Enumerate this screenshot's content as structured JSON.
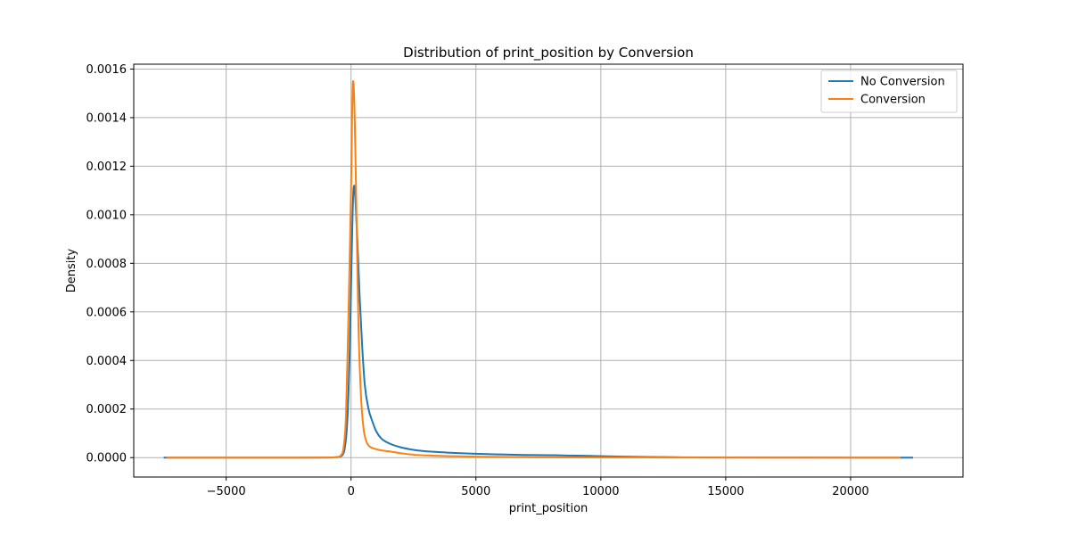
{
  "chart_data": {
    "type": "line",
    "title": "Distribution of print_position by Conversion",
    "xlabel": "print_position",
    "ylabel": "Density",
    "xlim": [
      -8700,
      24500
    ],
    "ylim": [
      -8e-05,
      0.00162
    ],
    "xticks": [
      -5000,
      0,
      5000,
      10000,
      15000,
      20000
    ],
    "xtick_labels": [
      "−5000",
      "0",
      "5000",
      "10000",
      "15000",
      "20000"
    ],
    "yticks": [
      0,
      0.0002,
      0.0004,
      0.0006,
      0.0008,
      0.001,
      0.0012,
      0.0014,
      0.0016
    ],
    "ytick_labels": [
      "0.0000",
      "0.0002",
      "0.0004",
      "0.0006",
      "0.0008",
      "0.0010",
      "0.0012",
      "0.0014",
      "0.0016"
    ],
    "grid": true,
    "legend_position": "top-right",
    "series": [
      {
        "name": "No Conversion",
        "color": "#1f77b4",
        "x": [
          -7500,
          -2000,
          -800,
          -500,
          -350,
          -250,
          -150,
          -50,
          0,
          50,
          100,
          130,
          180,
          250,
          350,
          450,
          550,
          700,
          850,
          1000,
          1200,
          1500,
          2000,
          2500,
          3000,
          3500,
          4000,
          5000,
          6000,
          7000,
          8000,
          9000,
          10000,
          11000,
          12000,
          13000,
          14000,
          15000,
          17000,
          20000,
          22500
        ],
        "y": [
          0,
          0,
          5e-07,
          3e-06,
          1e-05,
          4e-05,
          0.00015,
          0.00045,
          0.0007,
          0.00095,
          0.00111,
          0.00112,
          0.00105,
          0.0009,
          0.00065,
          0.00045,
          0.0003,
          0.0002,
          0.00015,
          0.00011,
          8e-05,
          6e-05,
          4.2e-05,
          3.2e-05,
          2.6e-05,
          2.3e-05,
          2e-05,
          1.6e-05,
          1.3e-05,
          1.1e-05,
          1e-05,
          8e-06,
          6e-06,
          4e-06,
          2.5e-06,
          1.5e-06,
          8e-07,
          4e-07,
          1e-07,
          0,
          0
        ]
      },
      {
        "name": "Conversion",
        "color": "#ff7f0e",
        "x": [
          -7400,
          -2000,
          -800,
          -500,
          -400,
          -300,
          -200,
          -100,
          0,
          50,
          80,
          100,
          150,
          200,
          250,
          300,
          400,
          500,
          600,
          700,
          800,
          1000,
          1200,
          1500,
          2000,
          2500,
          3000,
          4000,
          5000,
          7000,
          10000,
          13000,
          15000,
          18000,
          22000
        ],
        "y": [
          0,
          0,
          5e-07,
          3e-06,
          1e-05,
          4e-05,
          0.00018,
          0.0006,
          0.0011,
          0.00145,
          0.00155,
          0.00154,
          0.00138,
          0.0011,
          0.0008,
          0.00053,
          0.00025,
          0.00012,
          7e-05,
          5e-05,
          4.2e-05,
          3.5e-05,
          3e-05,
          2.6e-05,
          1.8e-05,
          1.2e-05,
          9e-06,
          6e-06,
          4e-06,
          2e-06,
          1e-06,
          5e-07,
          2e-07,
          0,
          0
        ]
      }
    ]
  }
}
